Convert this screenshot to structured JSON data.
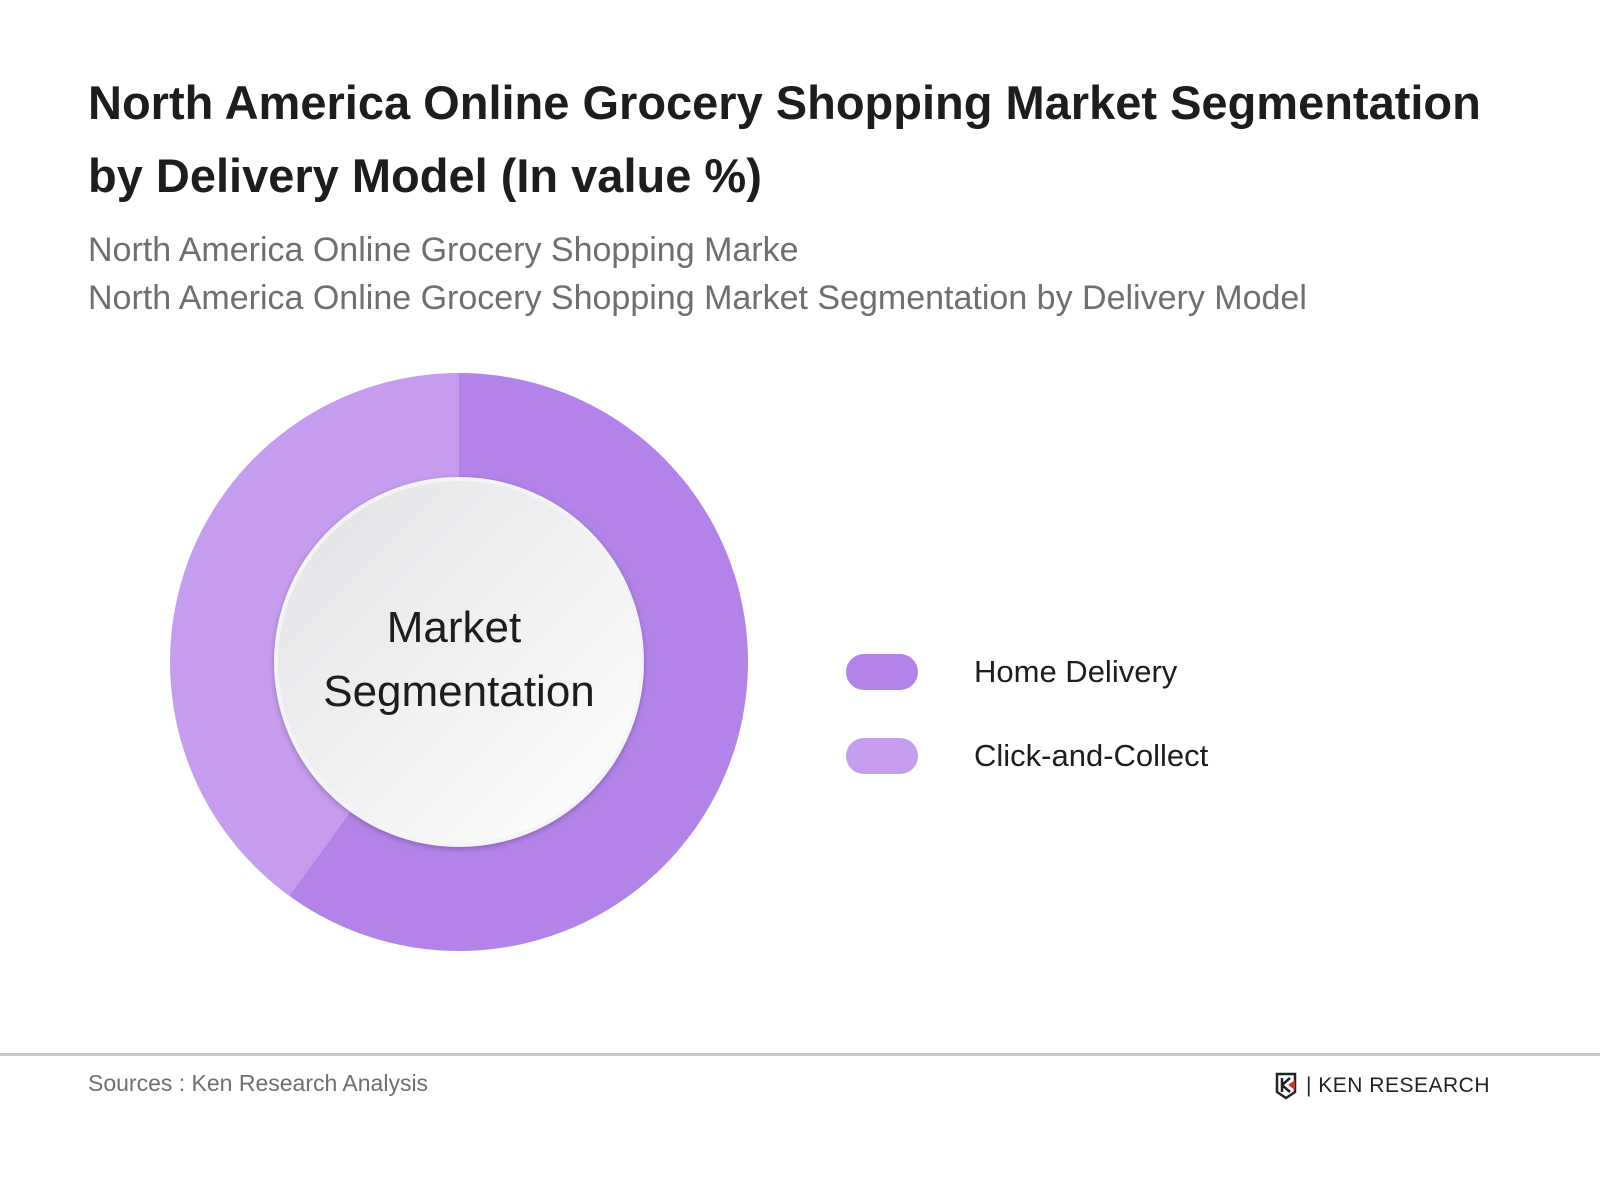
{
  "header": {
    "title": "North America Online Grocery Shopping Market Segmentation by Delivery Model (In value %)",
    "subtitle_lines": [
      "North America Online Grocery Shopping Marke",
      "North America Online Grocery Shopping Market Segmentation by Delivery Model"
    ]
  },
  "chart_data": {
    "type": "pie",
    "donut": true,
    "center_label_lines": [
      "Market",
      "Segmentation"
    ],
    "categories": [
      "Home Delivery",
      "Click-and-Collect"
    ],
    "values": [
      60,
      40
    ],
    "colors": [
      "#b383e9",
      "#c69cee"
    ],
    "legend_position": "right"
  },
  "footer": {
    "source": "Sources : Ken Research Analysis",
    "logo_text": "KEN RESEARCH"
  }
}
